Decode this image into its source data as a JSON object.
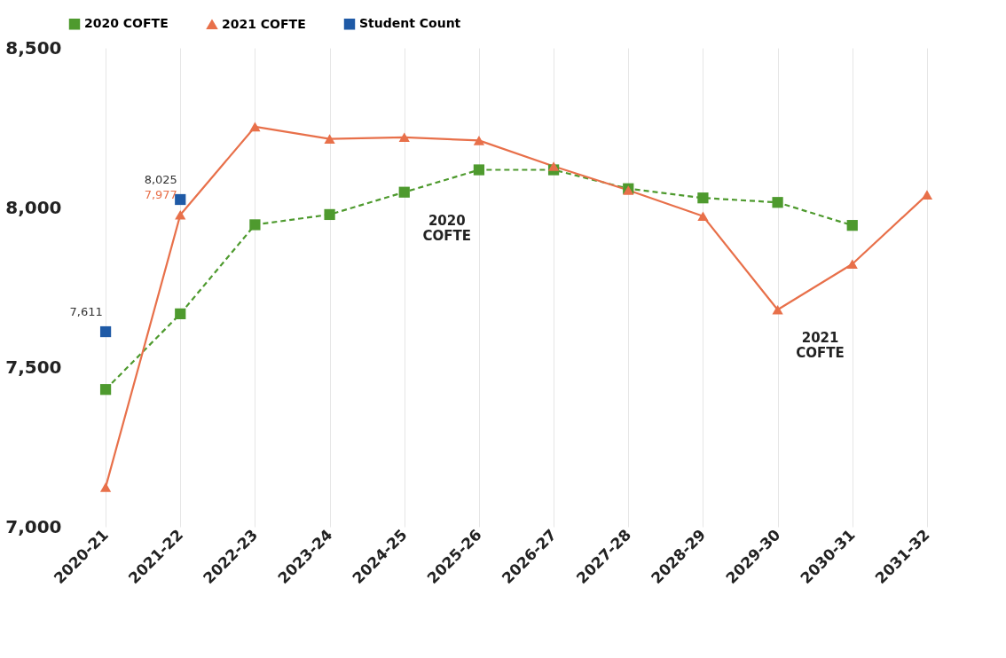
{
  "chart_data": {
    "type": "line",
    "categories": [
      "2020-21",
      "2021-22",
      "2022-23",
      "2023-24",
      "2024-25",
      "2025-26",
      "2026-27",
      "2027-28",
      "2028-29",
      "2029-30",
      "2030-31",
      "2031-32"
    ],
    "series": [
      {
        "name": "2020 COFTE",
        "color": "#4e9a2e",
        "marker": "square",
        "line_style": "dashed",
        "values": [
          7430,
          7667,
          7946,
          7978,
          8048,
          8118,
          8118,
          8059,
          8030,
          8016,
          7944,
          null
        ]
      },
      {
        "name": "2021 COFTE",
        "color": "#e8704a",
        "marker": "triangle",
        "line_style": "solid",
        "values": [
          7124,
          7977,
          8253,
          8215,
          8220,
          8210,
          8129,
          8054,
          7973,
          7680,
          7823,
          8040
        ],
        "value_labels": [
          null,
          "7,977",
          null,
          null,
          null,
          null,
          null,
          null,
          null,
          null,
          null,
          null
        ]
      },
      {
        "name": "Student Count",
        "type": "scatter",
        "color": "#1f5aa6",
        "marker": "square",
        "values": [
          7611,
          8025,
          null,
          null,
          null,
          null,
          null,
          null,
          null,
          null,
          null,
          null
        ],
        "value_labels": [
          "7,611",
          "8,025",
          null,
          null,
          null,
          null,
          null,
          null,
          null,
          null,
          null,
          null
        ]
      }
    ],
    "ylim": [
      7000,
      8500
    ],
    "yticks": [
      {
        "value": 7000,
        "label": "7,000"
      },
      {
        "value": 7500,
        "label": "7,500"
      },
      {
        "value": 8000,
        "label": "8,000"
      },
      {
        "value": 8500,
        "label": "8,500"
      }
    ],
    "annotations": [
      {
        "text": "2020 COFTE",
        "x": "2024-25",
        "y": 8048
      },
      {
        "text": "2021 COFTE",
        "x": "2029-30",
        "y": 7680
      }
    ],
    "grid": "x",
    "legend": "top"
  }
}
